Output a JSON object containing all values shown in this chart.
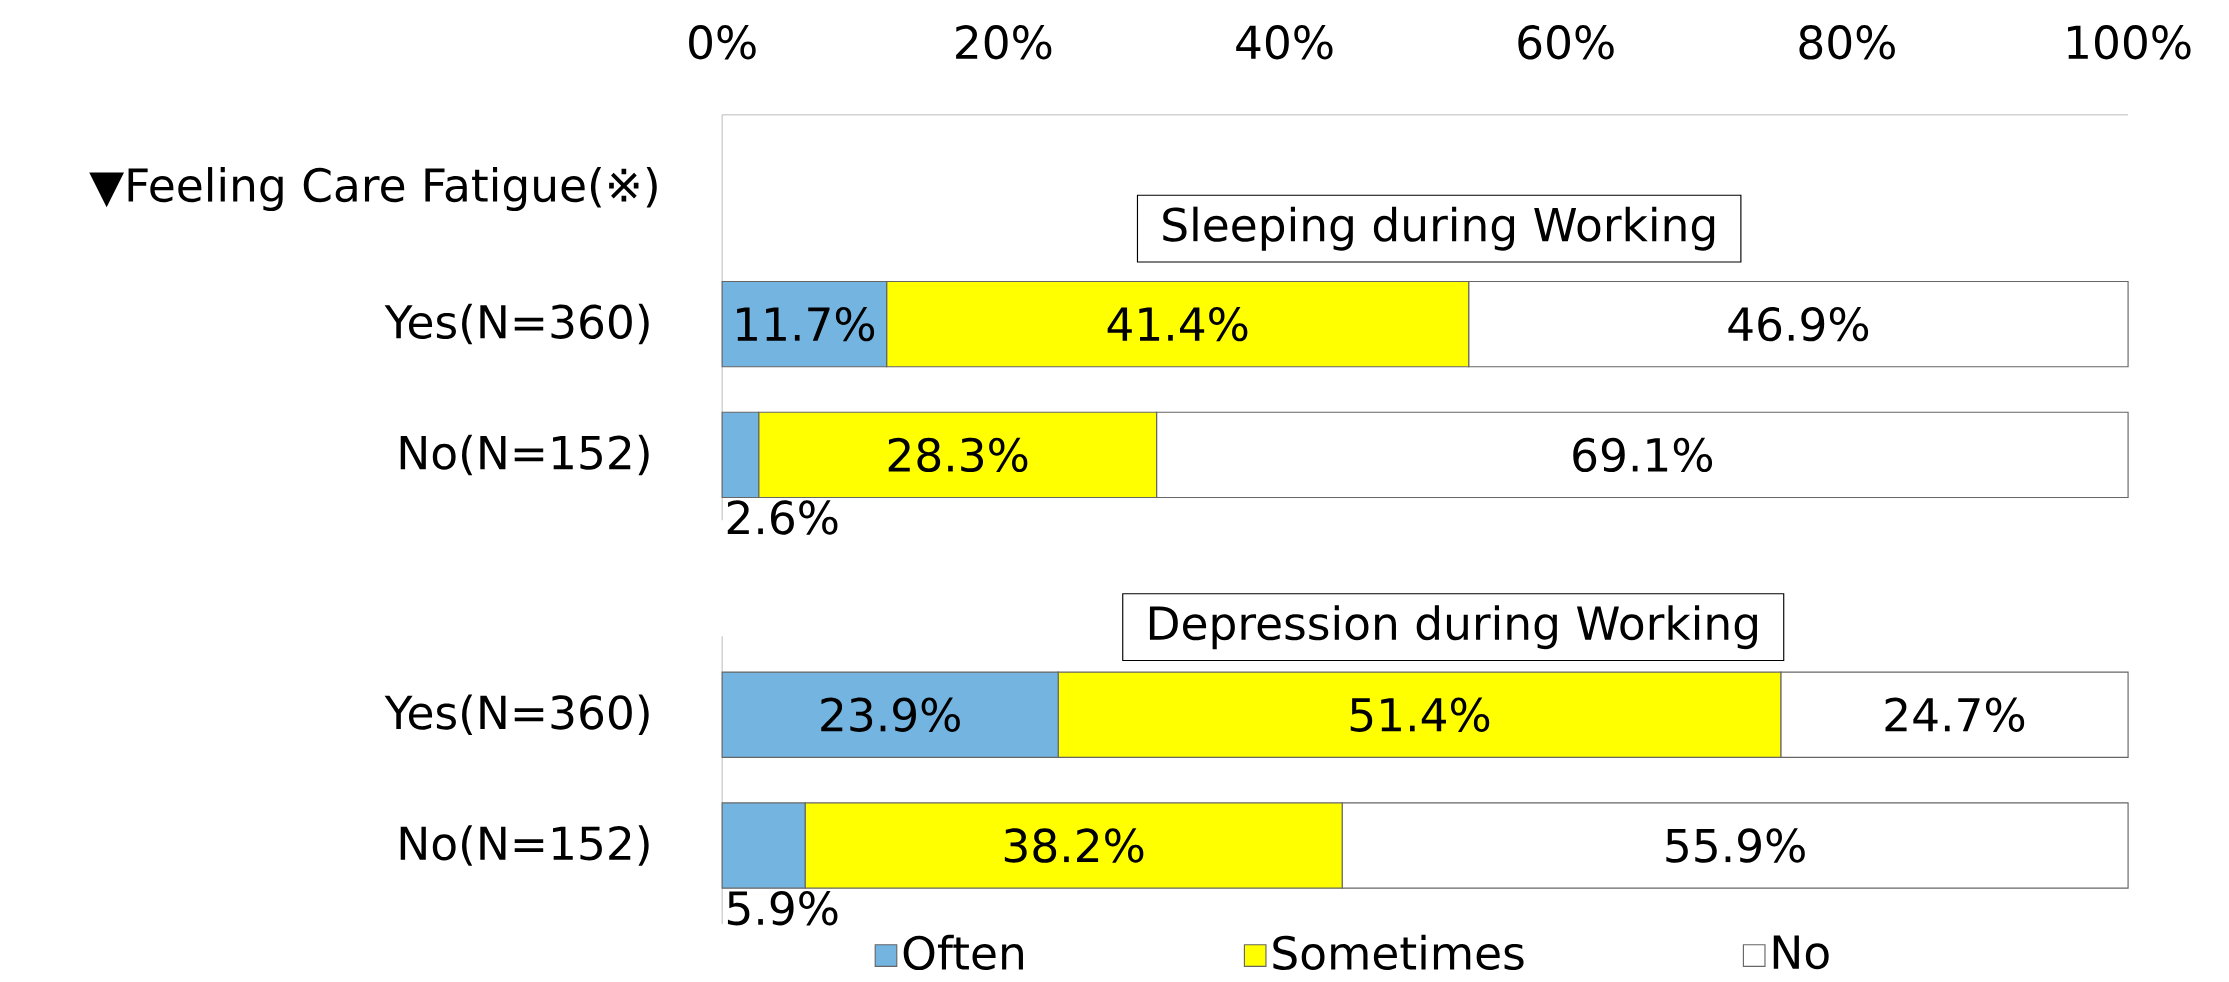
{
  "chart_data": [
    {
      "type": "bar",
      "orientation": "horizontal",
      "stacked": true,
      "title": "Sleeping during Working",
      "annotations": [
        "▼Feeling Care Fatigue(※)"
      ],
      "categories": [
        "Yes(N=360)",
        "No(N=152)"
      ],
      "xlim": [
        0,
        100
      ],
      "xticks": [
        {
          "value": 0,
          "label": "0%"
        },
        {
          "value": 20,
          "label": "20%"
        },
        {
          "value": 40,
          "label": "40%"
        },
        {
          "value": 60,
          "label": "60%"
        },
        {
          "value": 80,
          "label": "80%"
        },
        {
          "value": 100,
          "label": "100%"
        }
      ],
      "series": [
        {
          "color": "#74b4e0",
          "values": [
            11.7,
            2.6
          ],
          "value_labels": [
            "11.7%",
            "2.6%"
          ]
        },
        {
          "color": "#ffff00",
          "values": [
            41.4,
            28.3
          ],
          "value_labels": [
            "41.4%",
            "28.3%"
          ]
        },
        {
          "color": "#ffffff",
          "values": [
            46.9,
            69.1
          ],
          "value_labels": [
            "46.9%",
            "69.1%"
          ]
        }
      ]
    },
    {
      "type": "bar",
      "orientation": "horizontal",
      "stacked": true,
      "title": "Depression during Working",
      "categories": [
        "Yes(N=360)",
        "No(N=152)"
      ],
      "xlim": [
        0,
        100
      ],
      "tick_labels": "y",
      "legend": "bottom",
      "series": [
        {
          "name": "Often",
          "color": "#74b4e0",
          "values": [
            23.9,
            5.9
          ],
          "value_labels": [
            "23.9%",
            "5.9%"
          ]
        },
        {
          "name": "Sometimes",
          "color": "#ffff00",
          "values": [
            51.4,
            38.2
          ],
          "value_labels": [
            "51.4%",
            "38.2%"
          ]
        },
        {
          "name": "No",
          "color": "#ffffff",
          "values": [
            24.7,
            55.9
          ],
          "value_labels": [
            "24.7%",
            "55.9%"
          ]
        }
      ]
    }
  ]
}
